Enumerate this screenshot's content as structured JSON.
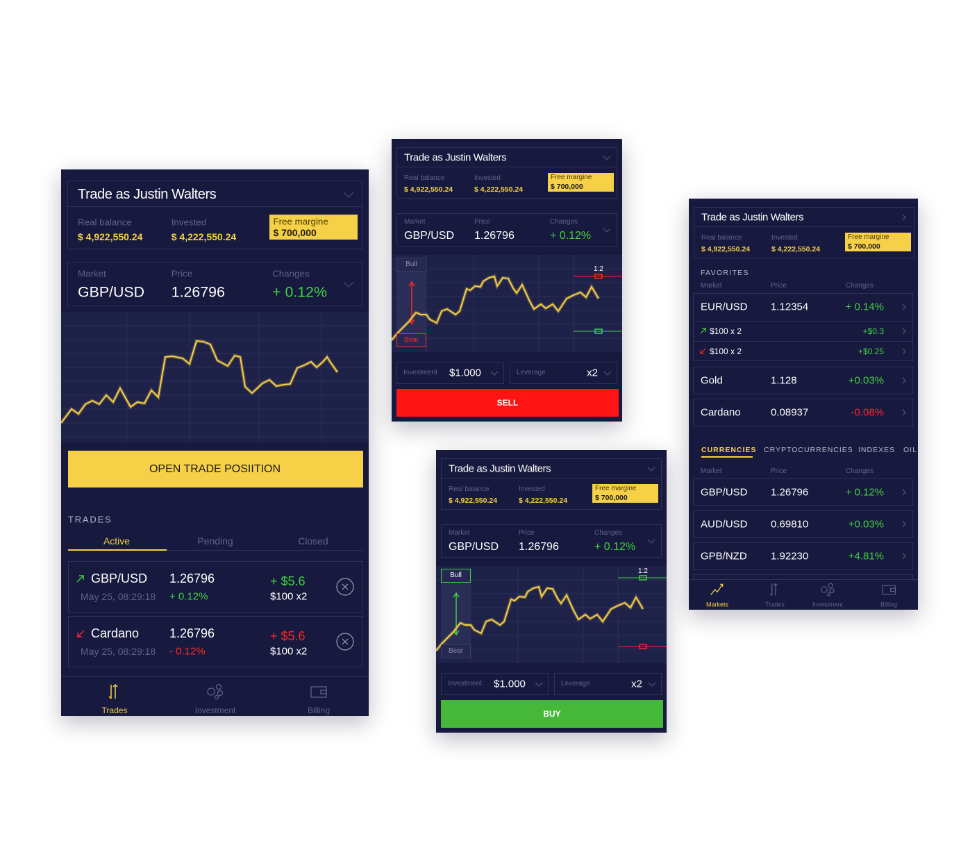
{
  "main": {
    "header": {
      "title": "Trade as Justin Walters",
      "real_balance_label": "Real balance",
      "real_balance": "$ 4,922,550.24",
      "invested_label": "Invested",
      "invested": "$ 4,222,550.24",
      "free_margin_label": "Free margine",
      "free_margin": "$ 700,000"
    },
    "market": {
      "market_label": "Market",
      "market": "GBP/USD",
      "price_label": "Price",
      "price": "1.26796",
      "changes_label": "Changes",
      "changes": "+ 0.12%"
    },
    "open_button": "OPEN TRADE POSIITION",
    "trades_title": "TRADES",
    "tabs": [
      "Active",
      "Pending",
      "Closed"
    ],
    "trades": [
      {
        "market": "GBP/USD",
        "date": "May 25, 08:29:18",
        "price": "1.26796",
        "change": "+ 0.12%",
        "profit": "+ $5.6",
        "amount": "$100 x2"
      },
      {
        "market": "Cardano",
        "date": "May 25, 08:29:18",
        "price": "1.26796",
        "change": "- 0.12%",
        "profit": "+ $5.6",
        "amount": "$100 x2"
      }
    ],
    "nav": [
      "Trades",
      "Investment",
      "Billing"
    ]
  },
  "sell": {
    "header": {
      "title": "Trade as Justin Walters",
      "real_balance_label": "Real balance",
      "real_balance": "$ 4,922,550.24",
      "invested_label": "Invested",
      "invested": "$ 4,222,550.24",
      "free_margin_label": "Free margine",
      "free_margin": "$ 700,000"
    },
    "market": {
      "market_label": "Market",
      "market": "GBP/USD",
      "price_label": "Price",
      "price": "1.26796",
      "changes_label": "Changes",
      "changes": "+ 0.12%"
    },
    "bull": "Bull",
    "bear": "Bear",
    "ratio": "1:2",
    "investment_label": "Investment",
    "investment": "$1.000",
    "leverage_label": "Leverage",
    "leverage": "x2",
    "button": "SELL"
  },
  "buy": {
    "header": {
      "title": "Trade as Justin Walters",
      "real_balance_label": "Real balance",
      "real_balance": "$ 4,922,550.24",
      "invested_label": "Invested",
      "invested": "$ 4,222,550.24",
      "free_margin_label": "Free margine",
      "free_margin": "$ 700,000"
    },
    "market": {
      "market_label": "Market",
      "market": "GBP/USD",
      "price_label": "Price",
      "price": "1.26796",
      "changes_label": "Changes",
      "changes": "+ 0.12%"
    },
    "bull": "Bull",
    "bear": "Bear",
    "ratio": "1:2",
    "investment_label": "Investment",
    "investment": "$1.000",
    "leverage_label": "Leverage",
    "leverage": "x2",
    "button": "BUY"
  },
  "markets": {
    "header": {
      "title": "Trade as Justin Walters",
      "real_balance_label": "Real balance",
      "real_balance": "$ 4,922,550.24",
      "invested_label": "Invested",
      "invested": "$ 4,222,550.24",
      "free_margin_label": "Free margine",
      "free_margin": "$ 700,000"
    },
    "favorites_title": "FAVORITES",
    "favorites_columns": [
      "Market",
      "Price",
      "Changes"
    ],
    "favorites": [
      {
        "market": "EUR/USD",
        "price": "1.12354",
        "change": "+ 0.14%",
        "positions": [
          {
            "amount": "$100 x 2",
            "profit": "+$0.3"
          },
          {
            "amount": "$100 x 2",
            "profit": "+$0.25"
          }
        ]
      },
      {
        "market": "Gold",
        "price": "1.128",
        "change": "+0.03%"
      },
      {
        "market": "Cardano",
        "price": "0.08937",
        "change": "-0.08%"
      }
    ],
    "tabs": [
      "CURRENCIES",
      "CRYPTOCURRENCIES",
      "INDEXES",
      "OIL"
    ],
    "currency_columns": [
      "Market",
      "Price",
      "Changes"
    ],
    "currencies": [
      {
        "market": "GBP/USD",
        "price": "1.26796",
        "change": "+ 0.12%"
      },
      {
        "market": "AUD/USD",
        "price": "0.69810",
        "change": "+0.03%"
      },
      {
        "market": "GPB/NZD",
        "price": "1.92230",
        "change": "+4.81%"
      }
    ],
    "nav": [
      "Markets",
      "Trades",
      "Investment",
      "Billing"
    ]
  }
}
